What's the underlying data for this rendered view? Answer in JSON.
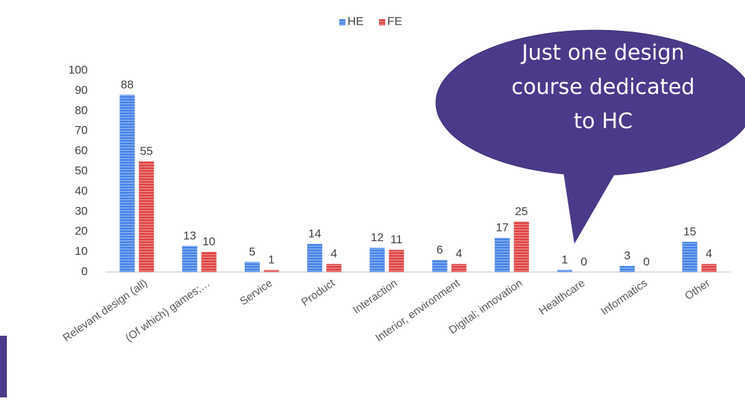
{
  "chart_data": {
    "type": "bar",
    "categories": [
      "Relevant design (all)",
      "(Of which) games;…",
      "Service",
      "Product",
      "Interaction",
      "Interior, environment",
      "Digital; innovation",
      "Healthcare",
      "Informatics",
      "Other"
    ],
    "series": [
      {
        "name": "HE",
        "color": "#4a86e8",
        "values": [
          88,
          13,
          5,
          14,
          12,
          6,
          17,
          1,
          3,
          15
        ]
      },
      {
        "name": "FE",
        "color": "#e04848",
        "values": [
          55,
          10,
          1,
          4,
          11,
          4,
          25,
          0,
          0,
          4
        ]
      }
    ],
    "ylim": [
      0,
      100
    ],
    "yticks": [
      0,
      10,
      20,
      30,
      40,
      50,
      60,
      70,
      80,
      90,
      100
    ],
    "legend": "top",
    "annotation": "Just one design course dedicated to HC"
  }
}
